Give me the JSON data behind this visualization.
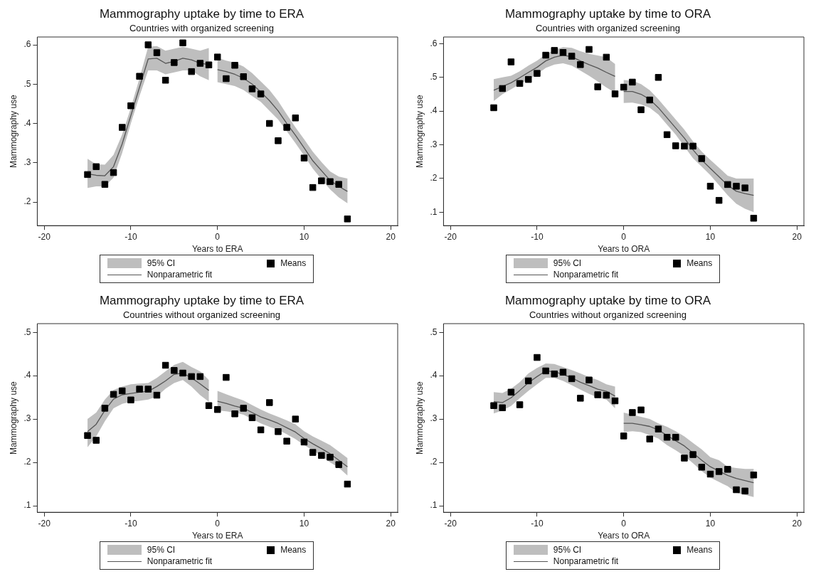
{
  "chart_data": [
    {
      "type": "scatter",
      "title": "Mammography uptake by time to ERA",
      "subtitle": "Countries with organized screening",
      "xlabel": "Years to ERA",
      "ylabel": "Mammography use",
      "legend": "bottom",
      "grid": false,
      "annotations": [
        "95% CI"
      ],
      "xlim": [
        -20.8,
        20.8
      ],
      "xticks": [
        -20,
        -10,
        0,
        10,
        20
      ],
      "ylim": [
        0.14,
        0.62
      ],
      "yticks": [
        {
          "value": 0.2,
          "label": ".2"
        },
        {
          "value": 0.3,
          "label": ".3"
        },
        {
          "value": 0.4,
          "label": ".4"
        },
        {
          "value": 0.5,
          "label": ".5"
        },
        {
          "value": 0.6,
          "label": ".6"
        }
      ],
      "x": [
        -15,
        -14,
        -13,
        -12,
        -11,
        -10,
        -9,
        -8,
        -7,
        -6,
        -5,
        -4,
        -3,
        -2,
        -1,
        0,
        1,
        2,
        3,
        4,
        5,
        6,
        7,
        8,
        9,
        10,
        11,
        12,
        13,
        14,
        15
      ],
      "series": [
        {
          "name": "Means",
          "type": "scatter",
          "color": "#000000",
          "marker": "square",
          "values": [
            0.27,
            0.29,
            0.245,
            0.275,
            0.39,
            0.445,
            0.52,
            0.6,
            0.58,
            0.51,
            0.555,
            0.605,
            0.532,
            0.553,
            0.549,
            0.569,
            0.514,
            0.548,
            0.519,
            0.488,
            0.475,
            0.4,
            0.356,
            0.39,
            0.414,
            0.312,
            0.237,
            0.254,
            0.252,
            0.245,
            0.157
          ]
        },
        {
          "name": "Nonparametric fit",
          "type": "line",
          "color": "#555555",
          "x": [
            -15,
            -14,
            -13,
            -12,
            -11,
            -10,
            -9,
            -8,
            -7,
            -6,
            -5,
            -4,
            -3,
            -2,
            -1
          ],
          "values": [
            0.272,
            0.268,
            0.267,
            0.29,
            0.348,
            0.42,
            0.492,
            0.564,
            0.566,
            0.553,
            0.558,
            0.566,
            0.562,
            0.553,
            0.55
          ],
          "lower": [
            0.236,
            0.24,
            0.24,
            0.262,
            0.325,
            0.4,
            0.47,
            0.535,
            0.535,
            0.525,
            0.53,
            0.535,
            0.535,
            0.52,
            0.51
          ],
          "upper": [
            0.31,
            0.296,
            0.295,
            0.32,
            0.372,
            0.44,
            0.515,
            0.595,
            0.597,
            0.585,
            0.59,
            0.595,
            0.59,
            0.585,
            0.592
          ]
        },
        {
          "type": "line",
          "color": "#555555",
          "x": [
            0,
            1,
            2,
            3,
            4,
            5,
            6,
            7,
            8,
            9,
            10,
            11,
            12,
            13,
            14,
            15
          ],
          "values": [
            0.537,
            0.532,
            0.525,
            0.515,
            0.5,
            0.48,
            0.458,
            0.432,
            0.4,
            0.37,
            0.338,
            0.305,
            0.28,
            0.255,
            0.24,
            0.227
          ],
          "lower": [
            0.505,
            0.5,
            0.495,
            0.485,
            0.47,
            0.455,
            0.432,
            0.41,
            0.38,
            0.35,
            0.318,
            0.285,
            0.258,
            0.232,
            0.212,
            0.197
          ],
          "upper": [
            0.567,
            0.56,
            0.555,
            0.545,
            0.528,
            0.507,
            0.485,
            0.457,
            0.423,
            0.39,
            0.36,
            0.328,
            0.302,
            0.278,
            0.265,
            0.26
          ]
        }
      ]
    },
    {
      "type": "scatter",
      "title": "Mammography uptake by time to ORA",
      "subtitle": "Countries with organized screening",
      "xlabel": "Years to ORA",
      "ylabel": "Mammography use",
      "legend": "bottom",
      "grid": false,
      "annotations": [
        "95% CI"
      ],
      "xlim": [
        -20.8,
        20.8
      ],
      "xticks": [
        -20,
        -10,
        0,
        10,
        20
      ],
      "ylim": [
        0.06,
        0.62
      ],
      "yticks": [
        {
          "value": 0.1,
          "label": ".1"
        },
        {
          "value": 0.2,
          "label": ".2"
        },
        {
          "value": 0.3,
          "label": ".3"
        },
        {
          "value": 0.4,
          "label": ".4"
        },
        {
          "value": 0.5,
          "label": ".5"
        },
        {
          "value": 0.6,
          "label": ".6"
        }
      ],
      "x": [
        -15,
        -14,
        -13,
        -12,
        -11,
        -10,
        -9,
        -8,
        -7,
        -6,
        -5,
        -4,
        -3,
        -2,
        -1,
        0,
        1,
        2,
        3,
        4,
        5,
        6,
        7,
        8,
        9,
        10,
        11,
        12,
        13,
        14,
        15
      ],
      "series": [
        {
          "name": "Means",
          "type": "scatter",
          "color": "#000000",
          "marker": "square",
          "values": [
            0.41,
            0.467,
            0.546,
            0.482,
            0.494,
            0.512,
            0.566,
            0.58,
            0.574,
            0.563,
            0.538,
            0.583,
            0.472,
            0.56,
            0.451,
            0.471,
            0.486,
            0.404,
            0.433,
            0.5,
            0.33,
            0.297,
            0.296,
            0.296,
            0.259,
            0.177,
            0.135,
            0.182,
            0.177,
            0.172,
            0.082
          ]
        },
        {
          "name": "Nonparametric fit",
          "type": "line",
          "color": "#555555",
          "x": [
            -15,
            -14,
            -13,
            -12,
            -11,
            -10,
            -9,
            -8,
            -7,
            -6,
            -5,
            -4,
            -3,
            -2,
            -1
          ],
          "values": [
            0.462,
            0.473,
            0.484,
            0.499,
            0.515,
            0.53,
            0.549,
            0.56,
            0.566,
            0.561,
            0.549,
            0.538,
            0.528,
            0.515,
            0.503
          ],
          "lower": [
            0.43,
            0.45,
            0.465,
            0.48,
            0.494,
            0.51,
            0.528,
            0.538,
            0.542,
            0.535,
            0.52,
            0.505,
            0.488,
            0.47,
            0.455
          ],
          "upper": [
            0.495,
            0.5,
            0.505,
            0.518,
            0.535,
            0.55,
            0.568,
            0.582,
            0.59,
            0.588,
            0.578,
            0.57,
            0.565,
            0.56,
            0.54
          ]
        },
        {
          "type": "line",
          "color": "#555555",
          "x": [
            0,
            1,
            2,
            3,
            4,
            5,
            6,
            7,
            8,
            9,
            10,
            11,
            12,
            13,
            14,
            15
          ],
          "values": [
            0.458,
            0.458,
            0.45,
            0.435,
            0.41,
            0.38,
            0.35,
            0.32,
            0.285,
            0.255,
            0.23,
            0.205,
            0.18,
            0.162,
            0.155,
            0.15
          ],
          "lower": [
            0.424,
            0.425,
            0.42,
            0.41,
            0.39,
            0.36,
            0.33,
            0.295,
            0.26,
            0.235,
            0.21,
            0.18,
            0.15,
            0.125,
            0.11,
            0.1
          ],
          "upper": [
            0.492,
            0.49,
            0.48,
            0.462,
            0.435,
            0.405,
            0.375,
            0.345,
            0.31,
            0.28,
            0.255,
            0.232,
            0.208,
            0.2,
            0.2,
            0.2
          ]
        }
      ]
    },
    {
      "type": "scatter",
      "title": "Mammography uptake by time to ERA",
      "subtitle": "Countries without organized screening",
      "xlabel": "Years to ERA",
      "ylabel": "Mammography use",
      "legend": "bottom",
      "grid": false,
      "annotations": [
        "95% CI"
      ],
      "xlim": [
        -20.8,
        20.8
      ],
      "xticks": [
        -20,
        -10,
        0,
        10,
        20
      ],
      "ylim": [
        0.085,
        0.52
      ],
      "yticks": [
        {
          "value": 0.1,
          "label": ".1"
        },
        {
          "value": 0.2,
          "label": ".2"
        },
        {
          "value": 0.3,
          "label": ".3"
        },
        {
          "value": 0.4,
          "label": ".4"
        },
        {
          "value": 0.5,
          "label": ".5"
        }
      ],
      "x": [
        -15,
        -14,
        -13,
        -12,
        -11,
        -10,
        -9,
        -8,
        -7,
        -6,
        -5,
        -4,
        -3,
        -2,
        -1,
        0,
        1,
        2,
        3,
        4,
        5,
        6,
        7,
        8,
        9,
        10,
        11,
        12,
        13,
        14,
        15
      ],
      "series": [
        {
          "name": "Means",
          "type": "scatter",
          "color": "#000000",
          "marker": "square",
          "values": [
            0.262,
            0.251,
            0.325,
            0.357,
            0.365,
            0.344,
            0.369,
            0.369,
            0.355,
            0.424,
            0.412,
            0.406,
            0.398,
            0.398,
            0.331,
            0.322,
            0.396,
            0.312,
            0.325,
            0.303,
            0.275,
            0.338,
            0.271,
            0.249,
            0.3,
            0.247,
            0.223,
            0.216,
            0.212,
            0.195,
            0.15
          ]
        },
        {
          "name": "Nonparametric fit",
          "type": "line",
          "color": "#555555",
          "x": [
            -15,
            -14,
            -13,
            -12,
            -11,
            -10,
            -9,
            -8,
            -7,
            -6,
            -5,
            -4,
            -3,
            -2,
            -1
          ],
          "values": [
            0.271,
            0.288,
            0.32,
            0.346,
            0.356,
            0.359,
            0.362,
            0.364,
            0.375,
            0.388,
            0.403,
            0.406,
            0.395,
            0.381,
            0.366
          ],
          "lower": [
            0.235,
            0.26,
            0.295,
            0.325,
            0.335,
            0.34,
            0.342,
            0.345,
            0.352,
            0.37,
            0.383,
            0.39,
            0.375,
            0.355,
            0.34
          ],
          "upper": [
            0.3,
            0.315,
            0.345,
            0.367,
            0.375,
            0.38,
            0.382,
            0.383,
            0.395,
            0.41,
            0.425,
            0.432,
            0.42,
            0.41,
            0.39
          ]
        },
        {
          "type": "line",
          "color": "#555555",
          "x": [
            0,
            1,
            2,
            3,
            4,
            5,
            6,
            7,
            8,
            9,
            10,
            11,
            12,
            13,
            14,
            15
          ],
          "values": [
            0.341,
            0.336,
            0.33,
            0.325,
            0.315,
            0.305,
            0.298,
            0.29,
            0.28,
            0.27,
            0.255,
            0.243,
            0.232,
            0.22,
            0.205,
            0.19
          ],
          "lower": [
            0.32,
            0.318,
            0.315,
            0.31,
            0.3,
            0.29,
            0.282,
            0.275,
            0.265,
            0.254,
            0.24,
            0.228,
            0.215,
            0.2,
            0.188,
            0.17
          ],
          "upper": [
            0.365,
            0.357,
            0.35,
            0.343,
            0.332,
            0.322,
            0.313,
            0.305,
            0.297,
            0.288,
            0.272,
            0.26,
            0.25,
            0.24,
            0.225,
            0.21
          ]
        }
      ]
    },
    {
      "type": "scatter",
      "title": "Mammography uptake by time to ORA",
      "subtitle": "Countries without organized screening",
      "xlabel": "Years to ORA",
      "ylabel": "Mammography use",
      "legend": "bottom",
      "grid": false,
      "annotations": [
        "95% CI"
      ],
      "xlim": [
        -20.8,
        20.8
      ],
      "xticks": [
        -20,
        -10,
        0,
        10,
        20
      ],
      "ylim": [
        0.085,
        0.52
      ],
      "yticks": [
        {
          "value": 0.1,
          "label": ".1"
        },
        {
          "value": 0.2,
          "label": ".2"
        },
        {
          "value": 0.3,
          "label": ".3"
        },
        {
          "value": 0.4,
          "label": ".4"
        },
        {
          "value": 0.5,
          "label": ".5"
        }
      ],
      "x": [
        -15,
        -14,
        -13,
        -12,
        -11,
        -10,
        -9,
        -8,
        -7,
        -6,
        -5,
        -4,
        -3,
        -2,
        -1,
        0,
        1,
        2,
        3,
        4,
        5,
        6,
        7,
        8,
        9,
        10,
        11,
        12,
        13,
        14,
        15
      ],
      "series": [
        {
          "name": "Means",
          "type": "scatter",
          "color": "#000000",
          "marker": "square",
          "values": [
            0.331,
            0.326,
            0.362,
            0.333,
            0.388,
            0.442,
            0.411,
            0.404,
            0.408,
            0.393,
            0.348,
            0.39,
            0.356,
            0.355,
            0.342,
            0.261,
            0.315,
            0.321,
            0.254,
            0.277,
            0.258,
            0.258,
            0.21,
            0.218,
            0.189,
            0.173,
            0.179,
            0.184,
            0.137,
            0.134,
            0.171
          ]
        },
        {
          "name": "Nonparametric fit",
          "type": "line",
          "color": "#555555",
          "x": [
            -15,
            -14,
            -13,
            -12,
            -11,
            -10,
            -9,
            -8,
            -7,
            -6,
            -5,
            -4,
            -3,
            -2,
            -1
          ],
          "values": [
            0.34,
            0.338,
            0.349,
            0.366,
            0.384,
            0.398,
            0.411,
            0.409,
            0.403,
            0.395,
            0.385,
            0.377,
            0.369,
            0.364,
            0.353
          ],
          "lower": [
            0.313,
            0.32,
            0.33,
            0.348,
            0.365,
            0.38,
            0.395,
            0.395,
            0.388,
            0.378,
            0.368,
            0.358,
            0.35,
            0.345,
            0.325
          ],
          "upper": [
            0.362,
            0.36,
            0.37,
            0.385,
            0.405,
            0.418,
            0.428,
            0.427,
            0.42,
            0.413,
            0.405,
            0.397,
            0.39,
            0.38,
            0.375
          ]
        },
        {
          "type": "line",
          "color": "#555555",
          "x": [
            0,
            1,
            2,
            3,
            4,
            5,
            6,
            7,
            8,
            9,
            10,
            11,
            12,
            13,
            14,
            15
          ],
          "values": [
            0.29,
            0.29,
            0.287,
            0.283,
            0.275,
            0.262,
            0.25,
            0.238,
            0.222,
            0.205,
            0.19,
            0.18,
            0.17,
            0.163,
            0.158,
            0.153
          ],
          "lower": [
            0.27,
            0.272,
            0.27,
            0.263,
            0.255,
            0.24,
            0.228,
            0.215,
            0.198,
            0.18,
            0.165,
            0.155,
            0.145,
            0.13,
            0.125,
            0.12
          ],
          "upper": [
            0.315,
            0.31,
            0.305,
            0.3,
            0.29,
            0.282,
            0.272,
            0.26,
            0.245,
            0.23,
            0.212,
            0.205,
            0.19,
            0.187,
            0.185,
            0.185
          ]
        }
      ]
    }
  ]
}
